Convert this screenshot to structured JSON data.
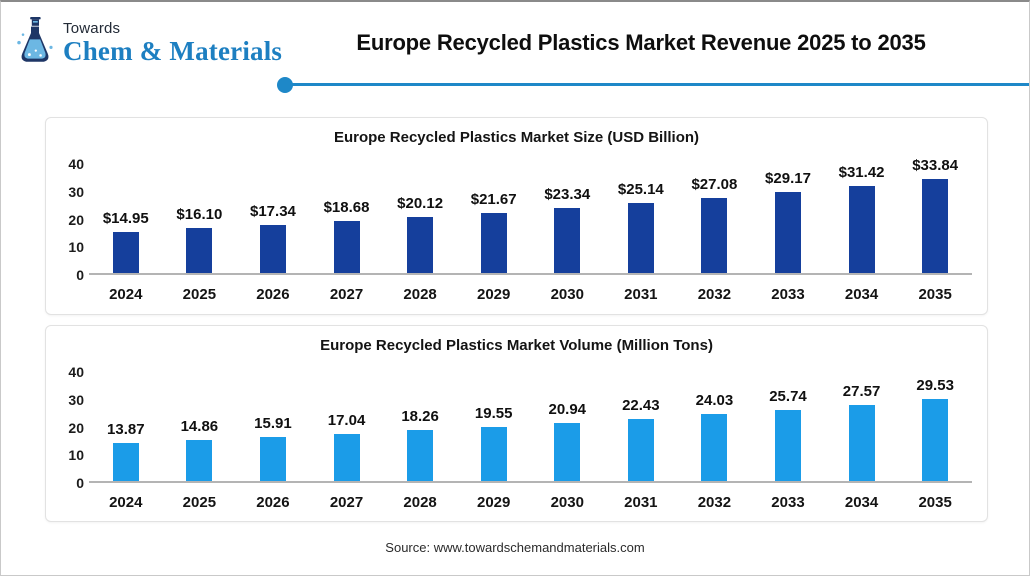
{
  "header": {
    "logo": {
      "line1": "Towards",
      "line2": "Chem & Materials"
    },
    "title": "Europe Recycled Plastics Market Revenue 2025 to 2035",
    "accent_color": "#1e88c8"
  },
  "chart_data": [
    {
      "type": "bar",
      "title": "Europe Recycled Plastics Market Size (USD Billion)",
      "categories": [
        "2024",
        "2025",
        "2026",
        "2027",
        "2028",
        "2029",
        "2030",
        "2031",
        "2032",
        "2033",
        "2034",
        "2035"
      ],
      "values": [
        14.95,
        16.1,
        17.34,
        18.68,
        20.12,
        21.67,
        23.34,
        25.14,
        27.08,
        29.17,
        31.42,
        33.84
      ],
      "value_labels": [
        "$14.95",
        "$16.10",
        "$17.34",
        "$18.68",
        "$20.12",
        "$21.67",
        "$23.34",
        "$25.14",
        "$27.08",
        "$29.17",
        "$31.42",
        "$33.84"
      ],
      "bar_color": "#153f9c",
      "xlabel": "",
      "ylabel": "",
      "ylim": [
        0,
        40
      ],
      "yticks": [
        0,
        10,
        20,
        30,
        40
      ],
      "grid": false,
      "legend": "none"
    },
    {
      "type": "bar",
      "title": "Europe Recycled Plastics Market Volume (Million Tons)",
      "categories": [
        "2024",
        "2025",
        "2026",
        "2027",
        "2028",
        "2029",
        "2030",
        "2031",
        "2032",
        "2033",
        "2034",
        "2035"
      ],
      "values": [
        13.87,
        14.86,
        15.91,
        17.04,
        18.26,
        19.55,
        20.94,
        22.43,
        24.03,
        25.74,
        27.57,
        29.53
      ],
      "value_labels": [
        "13.87",
        "14.86",
        "15.91",
        "17.04",
        "18.26",
        "19.55",
        "20.94",
        "22.43",
        "24.03",
        "25.74",
        "27.57",
        "29.53"
      ],
      "bar_color": "#1b9ce8",
      "xlabel": "",
      "ylabel": "",
      "ylim": [
        0,
        40
      ],
      "yticks": [
        0,
        10,
        20,
        30,
        40
      ],
      "grid": false,
      "legend": "none"
    }
  ],
  "footer": {
    "source": "Source: www.towardschemandmaterials.com"
  }
}
